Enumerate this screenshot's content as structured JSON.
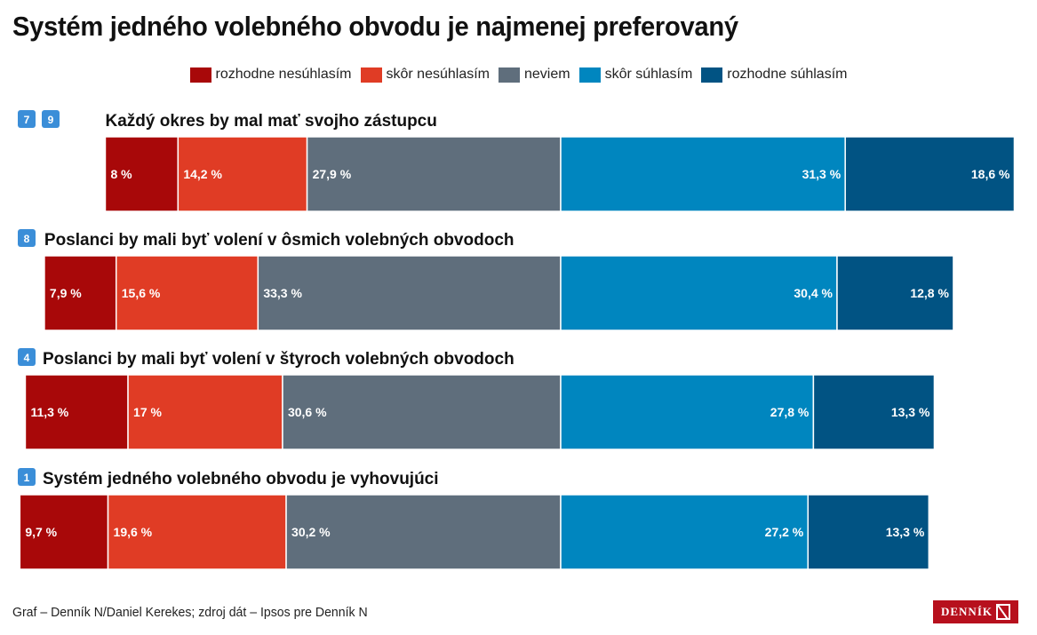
{
  "chart_data": {
    "type": "bar",
    "orientation": "horizontal",
    "stacked": "diverging",
    "title": "Systém jedného volebného obvodu je najmenej preferovaný",
    "legend_position": "top-center",
    "series": [
      {
        "name": "rozhodne nesúhlasím",
        "color": "#a80809"
      },
      {
        "name": "skôr nesúhlasím",
        "color": "#e03c25"
      },
      {
        "name": "neviem",
        "color": "#5f6e7c"
      },
      {
        "name": "skôr súhlasím",
        "color": "#0086bf"
      },
      {
        "name": "rozhodne súhlasím",
        "color": "#015383"
      }
    ],
    "rows": [
      {
        "badges": [
          "7",
          "9"
        ],
        "label": "Každý okres by mal mať svojho zástupcu",
        "values": [
          8,
          14.2,
          27.9,
          31.3,
          18.6
        ],
        "value_labels": [
          "8 %",
          "14,2 %",
          "27,9 %",
          "31,3 %",
          "18,6 %"
        ]
      },
      {
        "badges": [
          "8"
        ],
        "label": "Poslanci by mali byť volení v ôsmich volebných obvodoch",
        "values": [
          7.9,
          15.6,
          33.3,
          30.4,
          12.8
        ],
        "value_labels": [
          "7,9 %",
          "15,6 %",
          "33,3 %",
          "30,4 %",
          "12,8 %"
        ]
      },
      {
        "badges": [
          "4"
        ],
        "label": "Poslanci by mali byť volení v štyroch volebných obvodoch",
        "values": [
          11.3,
          17,
          30.6,
          27.8,
          13.3
        ],
        "value_labels": [
          "11,3 %",
          "17 %",
          "30,6 %",
          "27,8 %",
          "13,3 %"
        ]
      },
      {
        "badges": [
          "1"
        ],
        "label": "Systém jedného volebného obvodu je vyhovujúci",
        "values": [
          9.7,
          19.6,
          30.2,
          27.2,
          13.3
        ],
        "value_labels": [
          "9,7 %",
          "19,6 %",
          "30,2 %",
          "27,2 %",
          "13,3 %"
        ]
      }
    ]
  },
  "colors": {
    "badge": "#3b8ed8",
    "logo_bg": "#b7101d"
  },
  "footer": {
    "source": "Graf – Denník N/Daniel Kerekes; zdroj dát – Ipsos pre Denník N",
    "logo_text": "DENNÍK"
  }
}
